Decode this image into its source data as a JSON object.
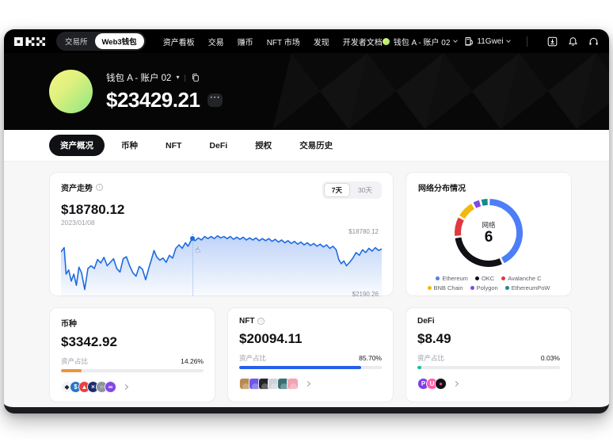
{
  "navbar": {
    "logo": "OKX",
    "toggle": {
      "exchange": "交易所",
      "web3": "Web3钱包"
    },
    "menu": [
      "资产看板",
      "交易",
      "赚币",
      "NFT 市场",
      "发现",
      "开发者文档"
    ],
    "account_label": "钱包 A - 账户 02",
    "gas_label": "11Gwei",
    "icons": [
      "download-icon",
      "bell-icon",
      "headset-icon",
      "globe-icon"
    ]
  },
  "header": {
    "wallet_name": "钱包 A - 账户 02",
    "balance": "$23429.21",
    "more_label": "···"
  },
  "tabs": [
    {
      "label": "资产概况",
      "active": true
    },
    {
      "label": "币种",
      "active": false
    },
    {
      "label": "NFT",
      "active": false
    },
    {
      "label": "DeFi",
      "active": false
    },
    {
      "label": "授权",
      "active": false
    },
    {
      "label": "交易历史",
      "active": false
    }
  ],
  "trend_card": {
    "title": "资产走势",
    "value": "$18780.12",
    "date": "2023/01/08",
    "ranges": [
      {
        "label": "7天",
        "active": true
      },
      {
        "label": "30天",
        "active": false
      }
    ],
    "max_label": "$18780.12",
    "min_label": "$2190.26"
  },
  "network_card": {
    "title": "网络分布情况",
    "center_label": "网络",
    "center_value": "6"
  },
  "asset_cards": [
    {
      "id": "coins",
      "title": "币种",
      "info": false,
      "value": "$3342.92",
      "ratio_label": "资产占比",
      "percent_label": "14.26%",
      "percent": 14.26,
      "bar_color": "#f2923c",
      "badges": [
        {
          "type": "circle",
          "bg": "#f2f3f5",
          "fg": "#23262c",
          "glyph": "◆",
          "name": "eth-coin-icon"
        },
        {
          "type": "circle",
          "bg": "#2775ca",
          "fg": "#ffffff",
          "glyph": "$",
          "name": "usdc-coin-icon"
        },
        {
          "type": "circle",
          "bg": "#e84142",
          "fg": "#ffffff",
          "glyph": "▲",
          "name": "avax-coin-icon"
        },
        {
          "type": "circle",
          "bg": "#1c2d6e",
          "fg": "#ffffff",
          "glyph": "×",
          "name": "navy-coin-icon"
        },
        {
          "type": "circle",
          "bg": "#8e949c",
          "fg": "#ffffff",
          "glyph": "○",
          "name": "gray-coin-icon"
        },
        {
          "type": "circle",
          "bg": "#8247e5",
          "fg": "#ffffff",
          "glyph": "∞",
          "name": "polygon-coin-icon"
        }
      ]
    },
    {
      "id": "nft",
      "title": "NFT",
      "info": true,
      "value": "$20094.11",
      "ratio_label": "资产占比",
      "percent_label": "85.70%",
      "percent": 85.7,
      "bar_color": "#2460e8",
      "badges": [
        {
          "type": "square",
          "bg": "#b98a50",
          "name": "nft-thumb"
        },
        {
          "type": "square",
          "bg": "#6f58e8",
          "name": "nft-thumb"
        },
        {
          "type": "square",
          "bg": "#23242a",
          "name": "nft-thumb"
        },
        {
          "type": "square",
          "bg": "#cfd3d8",
          "name": "nft-thumb"
        },
        {
          "type": "square",
          "bg": "#3a6f72",
          "name": "nft-thumb"
        },
        {
          "type": "square",
          "bg": "#f0a3b4",
          "name": "nft-thumb"
        }
      ]
    },
    {
      "id": "defi",
      "title": "DeFi",
      "info": false,
      "value": "$8.49",
      "ratio_label": "资产占比",
      "percent_label": "0.03%",
      "percent": 0.03,
      "bar_color": "#10c29a",
      "badges": [
        {
          "type": "circle",
          "bg": "#7b3fe4",
          "fg": "#ffffff",
          "glyph": "P",
          "name": "defi-protocol-icon"
        },
        {
          "type": "circle",
          "bg": "#ff5ca8",
          "fg": "#ffffff",
          "glyph": "U",
          "name": "defi-protocol-icon"
        },
        {
          "type": "circle",
          "bg": "#111111",
          "fg": "#ff3b9d",
          "glyph": "●",
          "name": "defi-protocol-icon"
        }
      ]
    }
  ],
  "chart_data": [
    {
      "type": "line",
      "title": "资产走势",
      "current_value": 18780.12,
      "current_date": "2023/01/08",
      "y_max": 18780.12,
      "y_min": 2190.26,
      "line_color": "#1f6be0",
      "selected_range": "7天",
      "marker": {
        "x": 41,
        "y": 15
      },
      "points": [
        [
          0,
          34
        ],
        [
          1,
          28
        ],
        [
          1.6,
          66
        ],
        [
          2.4,
          60
        ],
        [
          3.2,
          76
        ],
        [
          4,
          66
        ],
        [
          4.8,
          82
        ],
        [
          5.6,
          56
        ],
        [
          6.4,
          64
        ],
        [
          7.4,
          88
        ],
        [
          8.4,
          58
        ],
        [
          9.4,
          54
        ],
        [
          10.4,
          58
        ],
        [
          11.4,
          45
        ],
        [
          12.4,
          50
        ],
        [
          13.4,
          42
        ],
        [
          14.4,
          54
        ],
        [
          15.4,
          49
        ],
        [
          16.4,
          44
        ],
        [
          17.4,
          58
        ],
        [
          18.4,
          63
        ],
        [
          19.4,
          44
        ],
        [
          20.4,
          41
        ],
        [
          21.4,
          54
        ],
        [
          22.4,
          64
        ],
        [
          23.4,
          69
        ],
        [
          24.4,
          55
        ],
        [
          25.4,
          59
        ],
        [
          26.4,
          74
        ],
        [
          27.4,
          57
        ],
        [
          28.2,
          45
        ],
        [
          29,
          32
        ],
        [
          29.8,
          41
        ],
        [
          30.8,
          46
        ],
        [
          31.8,
          43
        ],
        [
          32.8,
          49
        ],
        [
          33.8,
          39
        ],
        [
          34.8,
          43
        ],
        [
          35.8,
          29
        ],
        [
          36.8,
          24
        ],
        [
          37.8,
          29
        ],
        [
          38.8,
          21
        ],
        [
          39.6,
          26
        ],
        [
          40.4,
          19
        ],
        [
          41,
          15
        ],
        [
          41.8,
          18
        ],
        [
          42.8,
          14
        ],
        [
          43.8,
          17
        ],
        [
          44.8,
          12
        ],
        [
          45.8,
          15
        ],
        [
          46.8,
          12
        ],
        [
          47.8,
          15
        ],
        [
          48.8,
          11
        ],
        [
          49.8,
          14
        ],
        [
          50.8,
          12
        ],
        [
          51.8,
          15
        ],
        [
          52.8,
          12
        ],
        [
          53.8,
          16
        ],
        [
          54.8,
          13
        ],
        [
          55.8,
          16
        ],
        [
          56.8,
          13
        ],
        [
          57.8,
          17
        ],
        [
          58.8,
          14
        ],
        [
          59.8,
          17
        ],
        [
          60.8,
          14
        ],
        [
          61.8,
          18
        ],
        [
          62.8,
          15
        ],
        [
          63.8,
          18
        ],
        [
          64.8,
          15
        ],
        [
          65.8,
          19
        ],
        [
          66.8,
          16
        ],
        [
          67.8,
          20
        ],
        [
          68.8,
          17
        ],
        [
          69.8,
          21
        ],
        [
          70.8,
          18
        ],
        [
          71.8,
          22
        ],
        [
          72.8,
          19
        ],
        [
          73.8,
          23
        ],
        [
          74.8,
          20
        ],
        [
          75.8,
          24
        ],
        [
          76.8,
          21
        ],
        [
          77.8,
          25
        ],
        [
          78.8,
          22
        ],
        [
          79.8,
          26
        ],
        [
          80.8,
          23
        ],
        [
          81.8,
          27
        ],
        [
          82.8,
          24
        ],
        [
          83.8,
          29
        ],
        [
          84.8,
          26
        ],
        [
          85.8,
          31
        ],
        [
          86.6,
          45
        ],
        [
          87.4,
          51
        ],
        [
          88.2,
          47
        ],
        [
          89,
          54
        ],
        [
          90,
          49
        ],
        [
          91,
          43
        ],
        [
          92,
          35
        ],
        [
          93,
          39
        ],
        [
          94,
          31
        ],
        [
          95,
          35
        ],
        [
          96,
          29
        ],
        [
          97,
          33
        ],
        [
          98,
          28
        ],
        [
          99,
          32
        ],
        [
          100,
          30
        ]
      ]
    },
    {
      "type": "donut",
      "title": "网络分布情况",
      "center_label": "网络",
      "center_value": 6,
      "segments": [
        {
          "name": "Ethereum",
          "color": "#4d7ef7",
          "percent": 43
        },
        {
          "name": "OKC",
          "color": "#101114",
          "percent": 30
        },
        {
          "name": "Avalanche C",
          "color": "#e0393f",
          "percent": 10
        },
        {
          "name": "BNB Chain",
          "color": "#f0b90b",
          "percent": 9
        },
        {
          "name": "Polygon",
          "color": "#8247e5",
          "percent": 4
        },
        {
          "name": "EthereumPoW",
          "color": "#178a8a",
          "percent": 4
        }
      ]
    }
  ]
}
